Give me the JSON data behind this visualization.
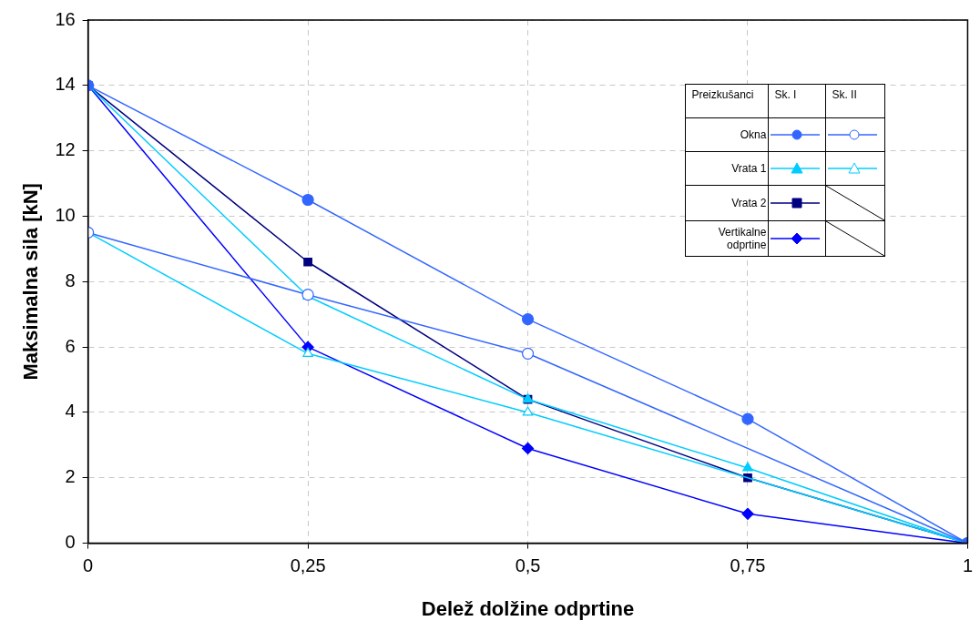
{
  "chart_data": {
    "type": "line",
    "xlabel": "Delež dolžine odprtine",
    "ylabel": "Maksimalna sila [kN]",
    "legend_title": "Preizkušanci",
    "annotations": [
      "Sk. I",
      "Sk. II"
    ],
    "x": [
      0,
      0.25,
      0.5,
      0.75,
      1
    ],
    "xlim": [
      0,
      1
    ],
    "xticks": [
      0,
      {
        "value": 0.25,
        "label": "0,25"
      },
      {
        "value": 0.5,
        "label": "0,5"
      },
      {
        "value": 0.75,
        "label": "0,75"
      },
      1
    ],
    "ylim": [
      0,
      16
    ],
    "yticks": [
      0,
      2,
      4,
      6,
      8,
      10,
      12,
      14,
      16
    ],
    "grid": true,
    "legend": "top right",
    "line_style": "solid",
    "series": [
      {
        "name": "Okna",
        "color": "#3366ff",
        "marker": "circle",
        "values": [
          14,
          10.5,
          6.85,
          3.8,
          0
        ]
      },
      {
        "color": "#3366ff",
        "marker": "circle",
        "values": [
          9.5,
          7.6,
          5.8,
          null,
          0
        ]
      },
      {
        "name": "Vrata 1",
        "color": "#00ccff",
        "marker": "triangle",
        "values": [
          14,
          7.55,
          4.4,
          2.3,
          0
        ]
      },
      {
        "color": "#00ccff",
        "marker": "triangle",
        "values": [
          9.5,
          5.8,
          4.0,
          null,
          0
        ]
      },
      {
        "name": "Vrata 2",
        "color": "#000080",
        "marker": "square",
        "values": [
          14,
          8.6,
          4.4,
          2.0,
          0
        ]
      },
      {
        "name": "Vertikalne odprtine",
        "color": "#0000ff",
        "marker": "diamond",
        "values": [
          14,
          6.0,
          2.9,
          0.9,
          0
        ]
      }
    ]
  }
}
